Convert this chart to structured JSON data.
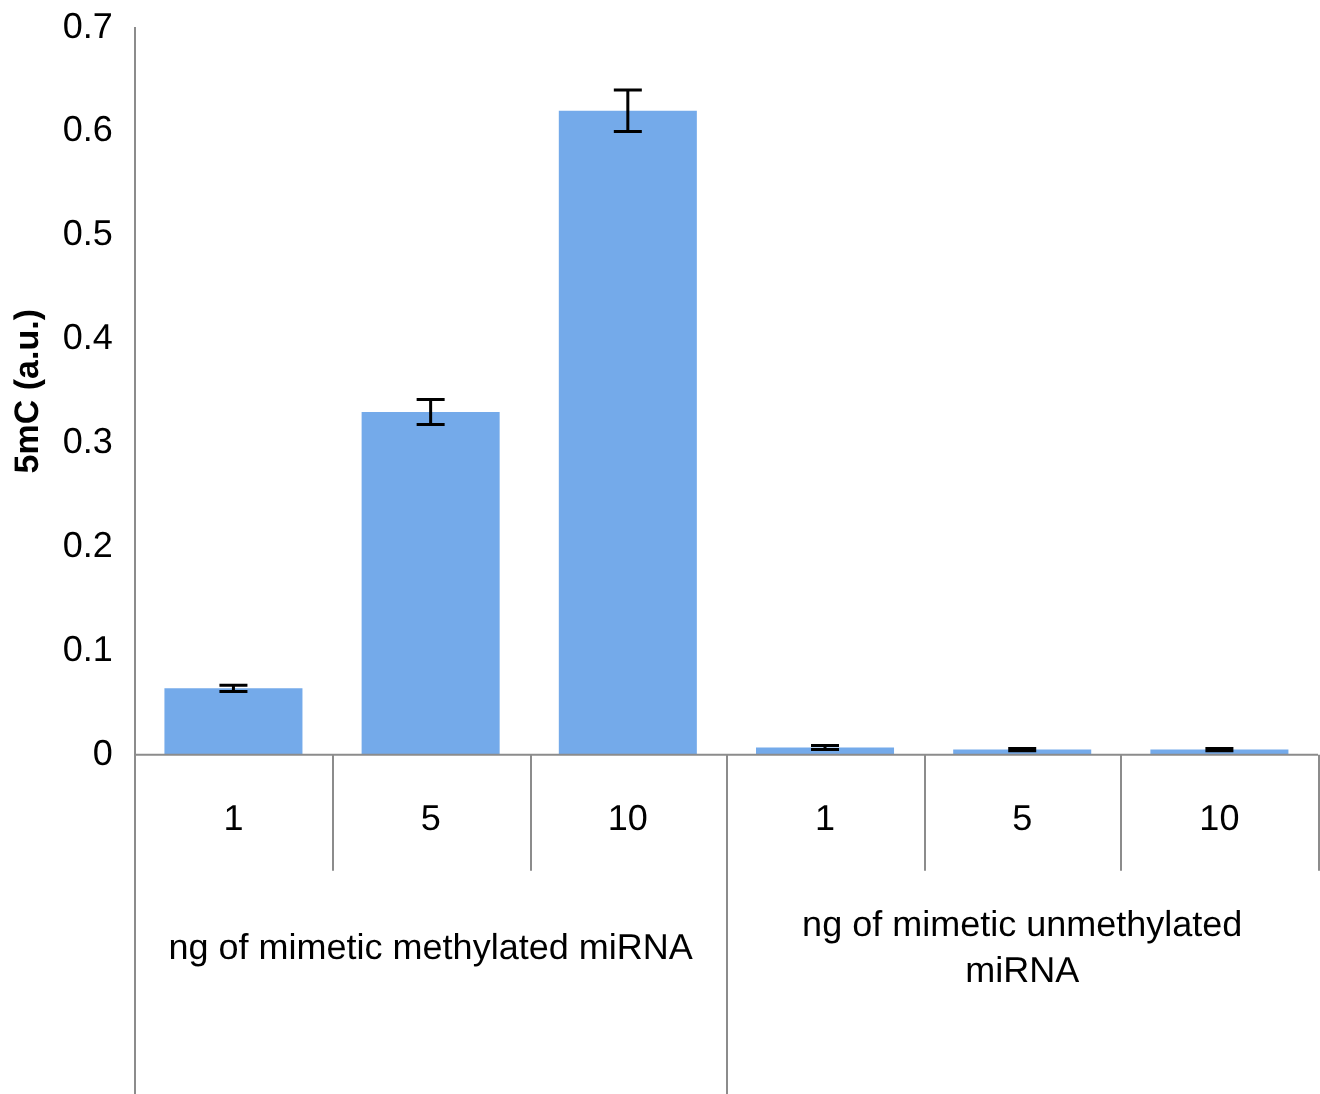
{
  "chart_data": {
    "type": "bar",
    "ylabel": "5mC (a.u.)",
    "categories": [
      "1",
      "5",
      "10",
      "1",
      "5",
      "10"
    ],
    "values": [
      0.064,
      0.33,
      0.62,
      0.007,
      0.005,
      0.005
    ],
    "errors": [
      0.003,
      0.012,
      0.02,
      0.002,
      0.001,
      0.001
    ],
    "color": "#74aaea",
    "ylim": [
      0,
      0.7
    ],
    "yticks": [
      0,
      0.1,
      0.2,
      0.3,
      0.4,
      0.5,
      0.6,
      0.7
    ],
    "annotations": [
      "ng of mimetic methylated miRNA",
      "ng of mimetic unmethylated miRNA"
    ]
  }
}
